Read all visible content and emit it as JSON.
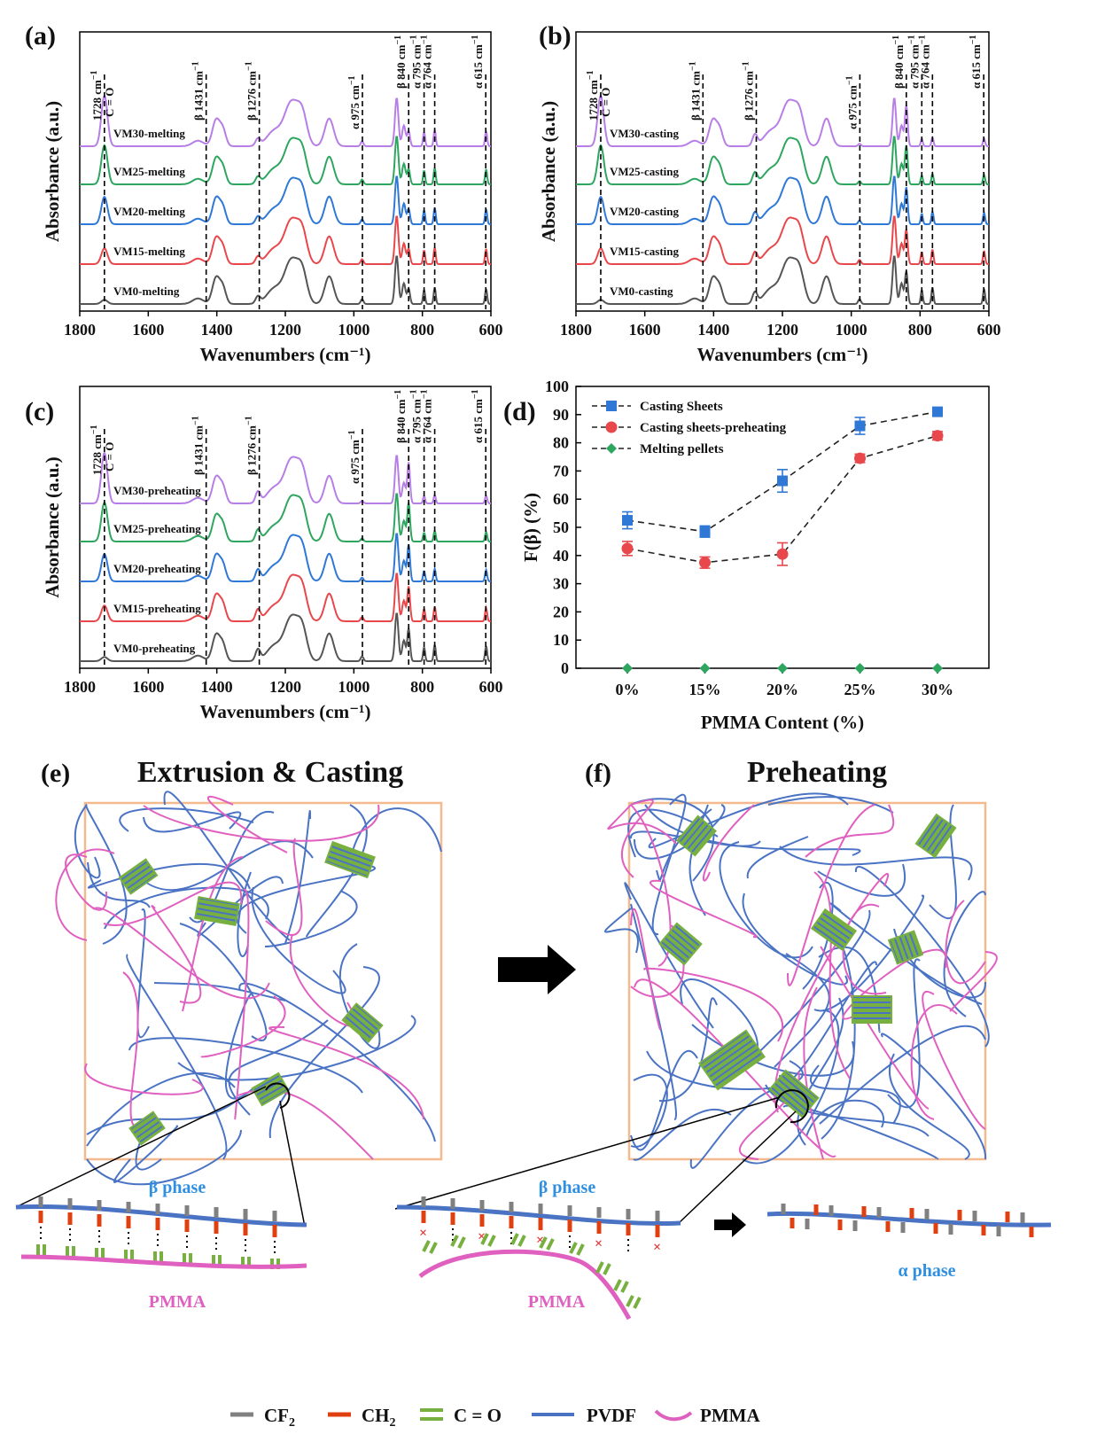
{
  "chart_data": [
    {
      "panel": "(a)",
      "type": "line",
      "title": "",
      "xlabel": "Wavenumbers (cm⁻¹)",
      "ylabel": "Absorbance (a.u.)",
      "xlim": [
        1800,
        600
      ],
      "xticks": [
        "1800",
        "1600",
        "1400",
        "1200",
        "1000",
        "800",
        "600"
      ],
      "series": [
        {
          "name": "VM0-melting",
          "color": "#555555"
        },
        {
          "name": "VM15-melting",
          "color": "#e8474b"
        },
        {
          "name": "VM20-melting",
          "color": "#2f78d6"
        },
        {
          "name": "VM25-melting",
          "color": "#2ea660"
        },
        {
          "name": "VM30-melting",
          "color": "#b77ee6"
        }
      ],
      "peaks": [
        "1728 cm⁻¹\nC = O",
        "β 1431 cm⁻¹",
        "β 1276 cm⁻¹",
        "α 975 cm⁻¹",
        "β 840 cm⁻¹",
        "α 795 cm⁻¹",
        "α 764 cm⁻¹",
        "α 615 cm⁻¹"
      ]
    },
    {
      "panel": "(b)",
      "type": "line",
      "title": "",
      "xlabel": "Wavenumbers (cm⁻¹)",
      "ylabel": "Absorbance (a.u.)",
      "xlim": [
        1800,
        600
      ],
      "xticks": [
        "1800",
        "1600",
        "1400",
        "1200",
        "1000",
        "800",
        "600"
      ],
      "series": [
        {
          "name": "VM0-casting",
          "color": "#555555"
        },
        {
          "name": "VM15-casting",
          "color": "#e8474b"
        },
        {
          "name": "VM20-casting",
          "color": "#2f78d6"
        },
        {
          "name": "VM25-casting",
          "color": "#2ea660"
        },
        {
          "name": "VM30-casting",
          "color": "#b77ee6"
        }
      ],
      "peaks": [
        "1728 cm⁻¹\nC = O",
        "β 1431 cm⁻¹",
        "β 1276 cm⁻¹",
        "α 975 cm⁻¹",
        "β 840 cm⁻¹",
        "α 795 cm⁻¹",
        "α 764 cm⁻¹",
        "α 615 cm⁻¹"
      ]
    },
    {
      "panel": "(c)",
      "type": "line",
      "title": "",
      "xlabel": "Wavenumbers (cm⁻¹)",
      "ylabel": "Absorbance (a.u.)",
      "xlim": [
        1800,
        600
      ],
      "xticks": [
        "1800",
        "1600",
        "1400",
        "1200",
        "1000",
        "800",
        "600"
      ],
      "series": [
        {
          "name": "VM0-preheating",
          "color": "#555555"
        },
        {
          "name": "VM15-preheating",
          "color": "#e8474b"
        },
        {
          "name": "VM20-preheating",
          "color": "#2f78d6"
        },
        {
          "name": "VM25-preheating",
          "color": "#2ea660"
        },
        {
          "name": "VM30-preheating",
          "color": "#b77ee6"
        }
      ],
      "peaks": [
        "1728 cm⁻¹\nC = O",
        "β 1431 cm⁻¹",
        "β 1276 cm⁻¹",
        "α 975 cm⁻¹",
        "β 840 cm⁻¹",
        "α 795 cm⁻¹",
        "α 764 cm⁻¹",
        "α 615 cm⁻¹"
      ]
    },
    {
      "panel": "(d)",
      "type": "scatter",
      "title": "",
      "xlabel": "PMMA Content (%)",
      "ylabel": "F(β) (%)",
      "categories": [
        "0%",
        "15%",
        "20%",
        "25%",
        "30%"
      ],
      "ylim": [
        0,
        100
      ],
      "yticks": [
        "0",
        "10",
        "20",
        "30",
        "40",
        "50",
        "60",
        "70",
        "80",
        "90",
        "100"
      ],
      "series": [
        {
          "name": "Casting Sheets",
          "color": "#2f78d6",
          "marker": "square",
          "values": [
            52.5,
            48.5,
            66.5,
            86,
            91
          ],
          "errors": [
            3,
            2,
            4,
            3,
            1.5
          ]
        },
        {
          "name": "Casting sheets-preheating",
          "color": "#e8474b",
          "marker": "circle",
          "values": [
            42.5,
            37.5,
            40.5,
            74.5,
            82.5
          ],
          "errors": [
            2.5,
            2,
            4,
            1.5,
            1.5
          ]
        },
        {
          "name": "Melting pellets",
          "color": "#2ea660",
          "marker": "diamond",
          "values": [
            0,
            0,
            0,
            0,
            0
          ],
          "errors": [
            0,
            0,
            0,
            0,
            0
          ]
        }
      ]
    }
  ],
  "panels": {
    "a": "(a)",
    "b": "(b)",
    "c": "(c)",
    "d": "(d)",
    "e": "(e)",
    "f": "(f)"
  },
  "peak_labels": {
    "co_top": "1728 cm",
    "co_sup": "−1",
    "co_bottom": "C = O",
    "b1431": "β 1431 cm",
    "b1276": "β 1276 cm",
    "a975": "α 975 cm",
    "b840": "β 840 cm",
    "a795": "α 795 cm",
    "a764": "α 764 cm",
    "a615": "α 615 cm",
    "sup": "−1"
  },
  "schematic": {
    "title_e": "Extrusion & Casting",
    "title_f": "Preheating",
    "beta_phase_e": "β phase",
    "beta_phase_f": "β phase",
    "alpha_phase": "α phase",
    "pmma_e": "PMMA",
    "pmma_f": "PMMA",
    "colors": {
      "pvdf": "#4a73c4",
      "pmma": "#e060c0",
      "co": "#78b040",
      "cf2": "#808080",
      "ch2": "#e04010",
      "frame": "#f4b98c"
    }
  },
  "key": {
    "cf2": "CF",
    "cf2_sub": "2",
    "ch2": "CH",
    "ch2_sub": "2",
    "co": "C = O",
    "pvdf": "PVDF",
    "pmma": "PMMA"
  }
}
